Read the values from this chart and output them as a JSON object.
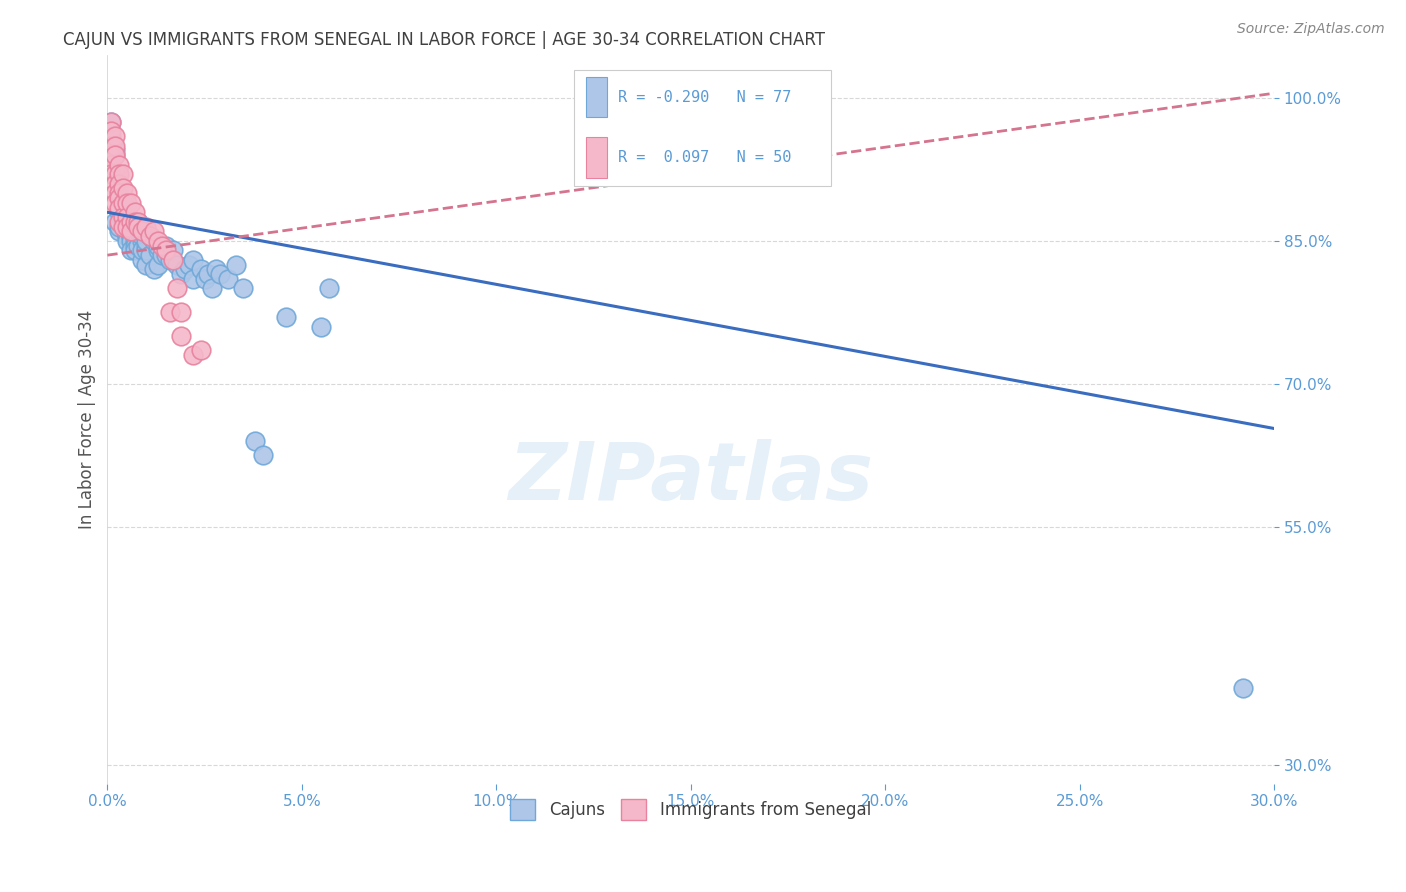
{
  "title": "CAJUN VS IMMIGRANTS FROM SENEGAL IN LABOR FORCE | AGE 30-34 CORRELATION CHART",
  "source": "Source: ZipAtlas.com",
  "ylabel": "In Labor Force | Age 30-34",
  "xlim": [
    0.0,
    0.3
  ],
  "ylim": [
    0.28,
    1.045
  ],
  "xticks": [
    0.0,
    0.05,
    0.1,
    0.15,
    0.2,
    0.25,
    0.3
  ],
  "yticks": [
    0.3,
    0.55,
    0.7,
    0.85,
    1.0
  ],
  "ytick_labels": [
    "30.0%",
    "55.0%",
    "70.0%",
    "85.0%",
    "100.0%"
  ],
  "xtick_labels": [
    "0.0%",
    "5.0%",
    "10.0%",
    "15.0%",
    "20.0%",
    "25.0%",
    "30.0%"
  ],
  "legend_labels": [
    "Cajuns",
    "Immigrants from Senegal"
  ],
  "R_cajun": -0.29,
  "N_cajun": 77,
  "R_senegal": 0.097,
  "N_senegal": 50,
  "cajun_color": "#aec6e8",
  "cajun_edge": "#6fa8d8",
  "senegal_color": "#f5b8ca",
  "senegal_edge": "#e8829e",
  "trend_cajun_color": "#3a6cc0",
  "trend_senegal_color": "#d4748e",
  "background_color": "#ffffff",
  "grid_color": "#d8d8d8",
  "title_color": "#404040",
  "axis_label_color": "#5b9bd5",
  "watermark": "ZIPatlas",
  "trend_cajun_x0": 0.0,
  "trend_cajun_y0": 0.88,
  "trend_cajun_x1": 0.3,
  "trend_cajun_y1": 0.653,
  "trend_senegal_x0": 0.0,
  "trend_senegal_y0": 0.835,
  "trend_senegal_x1": 0.3,
  "trend_senegal_y1": 1.005,
  "cajun_points": [
    [
      0.001,
      0.975
    ],
    [
      0.001,
      0.96
    ],
    [
      0.002,
      0.94
    ],
    [
      0.002,
      0.945
    ],
    [
      0.002,
      0.87
    ],
    [
      0.003,
      0.88
    ],
    [
      0.003,
      0.86
    ],
    [
      0.003,
      0.865
    ],
    [
      0.003,
      0.895
    ],
    [
      0.004,
      0.87
    ],
    [
      0.004,
      0.875
    ],
    [
      0.004,
      0.885
    ],
    [
      0.004,
      0.87
    ],
    [
      0.005,
      0.87
    ],
    [
      0.005,
      0.855
    ],
    [
      0.005,
      0.86
    ],
    [
      0.005,
      0.875
    ],
    [
      0.005,
      0.87
    ],
    [
      0.005,
      0.855
    ],
    [
      0.005,
      0.85
    ],
    [
      0.006,
      0.855
    ],
    [
      0.006,
      0.87
    ],
    [
      0.006,
      0.86
    ],
    [
      0.006,
      0.865
    ],
    [
      0.006,
      0.855
    ],
    [
      0.006,
      0.85
    ],
    [
      0.006,
      0.84
    ],
    [
      0.007,
      0.855
    ],
    [
      0.007,
      0.85
    ],
    [
      0.007,
      0.845
    ],
    [
      0.007,
      0.86
    ],
    [
      0.007,
      0.84
    ],
    [
      0.008,
      0.855
    ],
    [
      0.008,
      0.86
    ],
    [
      0.008,
      0.845
    ],
    [
      0.008,
      0.87
    ],
    [
      0.009,
      0.85
    ],
    [
      0.009,
      0.855
    ],
    [
      0.009,
      0.83
    ],
    [
      0.009,
      0.84
    ],
    [
      0.01,
      0.845
    ],
    [
      0.01,
      0.825
    ],
    [
      0.01,
      0.84
    ],
    [
      0.01,
      0.85
    ],
    [
      0.011,
      0.835
    ],
    [
      0.011,
      0.855
    ],
    [
      0.012,
      0.85
    ],
    [
      0.012,
      0.82
    ],
    [
      0.013,
      0.84
    ],
    [
      0.013,
      0.845
    ],
    [
      0.013,
      0.825
    ],
    [
      0.014,
      0.835
    ],
    [
      0.015,
      0.845
    ],
    [
      0.015,
      0.835
    ],
    [
      0.016,
      0.83
    ],
    [
      0.017,
      0.84
    ],
    [
      0.018,
      0.825
    ],
    [
      0.019,
      0.815
    ],
    [
      0.02,
      0.82
    ],
    [
      0.021,
      0.825
    ],
    [
      0.022,
      0.81
    ],
    [
      0.022,
      0.83
    ],
    [
      0.024,
      0.82
    ],
    [
      0.025,
      0.81
    ],
    [
      0.026,
      0.815
    ],
    [
      0.027,
      0.8
    ],
    [
      0.028,
      0.82
    ],
    [
      0.029,
      0.815
    ],
    [
      0.031,
      0.81
    ],
    [
      0.033,
      0.825
    ],
    [
      0.035,
      0.8
    ],
    [
      0.038,
      0.64
    ],
    [
      0.04,
      0.625
    ],
    [
      0.046,
      0.77
    ],
    [
      0.055,
      0.76
    ],
    [
      0.057,
      0.8
    ],
    [
      0.292,
      0.38
    ]
  ],
  "senegal_points": [
    [
      0.001,
      0.975
    ],
    [
      0.001,
      0.965
    ],
    [
      0.001,
      0.95
    ],
    [
      0.001,
      0.94
    ],
    [
      0.001,
      0.93
    ],
    [
      0.001,
      0.92
    ],
    [
      0.002,
      0.96
    ],
    [
      0.002,
      0.95
    ],
    [
      0.002,
      0.94
    ],
    [
      0.002,
      0.92
    ],
    [
      0.002,
      0.91
    ],
    [
      0.002,
      0.9
    ],
    [
      0.002,
      0.89
    ],
    [
      0.003,
      0.93
    ],
    [
      0.003,
      0.92
    ],
    [
      0.003,
      0.91
    ],
    [
      0.003,
      0.9
    ],
    [
      0.003,
      0.895
    ],
    [
      0.003,
      0.885
    ],
    [
      0.003,
      0.87
    ],
    [
      0.004,
      0.92
    ],
    [
      0.004,
      0.905
    ],
    [
      0.004,
      0.89
    ],
    [
      0.004,
      0.875
    ],
    [
      0.004,
      0.865
    ],
    [
      0.005,
      0.9
    ],
    [
      0.005,
      0.89
    ],
    [
      0.005,
      0.875
    ],
    [
      0.005,
      0.865
    ],
    [
      0.006,
      0.89
    ],
    [
      0.006,
      0.87
    ],
    [
      0.006,
      0.86
    ],
    [
      0.007,
      0.88
    ],
    [
      0.007,
      0.87
    ],
    [
      0.008,
      0.87
    ],
    [
      0.008,
      0.865
    ],
    [
      0.009,
      0.86
    ],
    [
      0.01,
      0.865
    ],
    [
      0.011,
      0.855
    ],
    [
      0.012,
      0.86
    ],
    [
      0.013,
      0.85
    ],
    [
      0.014,
      0.845
    ],
    [
      0.015,
      0.84
    ],
    [
      0.016,
      0.775
    ],
    [
      0.017,
      0.83
    ],
    [
      0.018,
      0.8
    ],
    [
      0.019,
      0.775
    ],
    [
      0.019,
      0.75
    ],
    [
      0.022,
      0.73
    ],
    [
      0.024,
      0.735
    ]
  ]
}
